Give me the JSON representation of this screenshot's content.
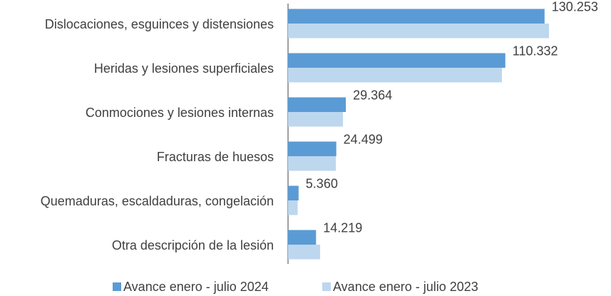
{
  "chart_data": {
    "type": "bar",
    "orientation": "horizontal",
    "categories": [
      "Dislocaciones, esguinces y distensiones",
      "Heridas y lesiones superficiales",
      "Conmociones y lesiones internas",
      "Fracturas de huesos",
      "Quemaduras, escaldaduras, congelación",
      "Otra descripción de la lesión"
    ],
    "series": [
      {
        "name": "Avance enero - julio 2024",
        "color": "#5b9bd5",
        "values": [
          130253,
          110332,
          29364,
          24499,
          5360,
          14219
        ],
        "value_labels": [
          "130.253",
          "110.332",
          "29.364",
          "24.499",
          "5.360",
          "14.219"
        ]
      },
      {
        "name": "Avance enero - julio 2023",
        "color": "#bdd7ee",
        "values": [
          132500,
          108600,
          27900,
          24300,
          4900,
          16300
        ]
      }
    ]
  }
}
